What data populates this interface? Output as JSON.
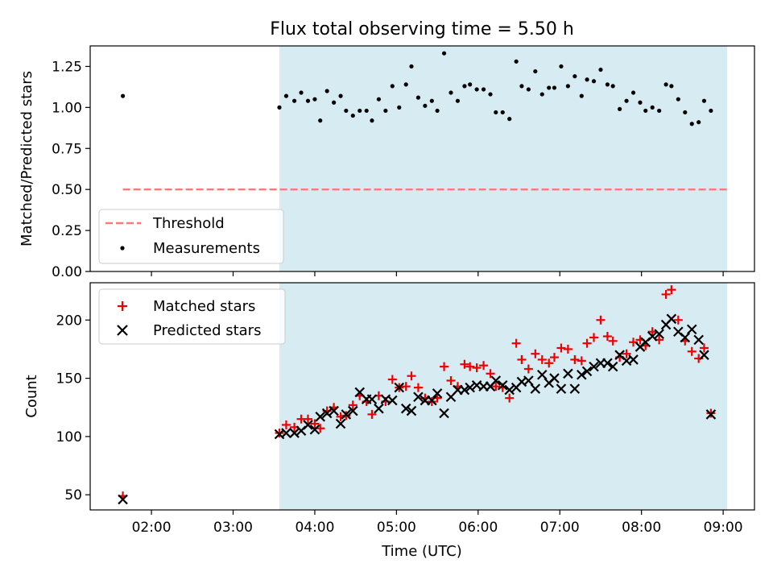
{
  "title": "Flux total observing time = 5.50 h",
  "colors": {
    "shade": "#add8e6",
    "threshold": "#ff7777",
    "measurement": "#000000",
    "matched": "#ee0000",
    "predicted": "#000000"
  },
  "shared_x": {
    "label": "Time (UTC)",
    "unit": "hours UTC",
    "range": [
      "01:15",
      "09:23"
    ],
    "ticks": [
      "02:00",
      "03:00",
      "04:00",
      "05:00",
      "06:00",
      "07:00",
      "08:00",
      "09:00"
    ],
    "shaded_span": [
      "03:34",
      "09:03"
    ]
  },
  "chart_data": [
    {
      "type": "scatter",
      "ylabel": "Matched/Predicted stars",
      "ylim": [
        0,
        1.375
      ],
      "yticks": [
        "0.00",
        "0.25",
        "0.50",
        "0.75",
        "1.00",
        "1.25"
      ],
      "legend": {
        "placement": "lower-left",
        "entries": [
          "Threshold",
          "Measurements"
        ]
      },
      "threshold": {
        "name": "Threshold",
        "value": 0.5,
        "from": "01:39",
        "to": "09:03",
        "style": "dashed"
      },
      "series": [
        {
          "name": "Measurements",
          "points": [
            [
              "01:39",
              1.07
            ],
            [
              "03:34",
              1.0
            ],
            [
              "03:39",
              1.07
            ],
            [
              "03:45",
              1.04
            ],
            [
              "03:50",
              1.09
            ],
            [
              "03:55",
              1.04
            ],
            [
              "04:00",
              1.05
            ],
            [
              "04:04",
              0.92
            ],
            [
              "04:09",
              1.1
            ],
            [
              "04:14",
              1.03
            ],
            [
              "04:19",
              1.07
            ],
            [
              "04:23",
              0.98
            ],
            [
              "04:28",
              0.95
            ],
            [
              "04:33",
              0.98
            ],
            [
              "04:38",
              0.98
            ],
            [
              "04:42",
              0.92
            ],
            [
              "04:47",
              1.05
            ],
            [
              "04:52",
              0.98
            ],
            [
              "04:57",
              1.13
            ],
            [
              "05:02",
              1.0
            ],
            [
              "05:07",
              1.14
            ],
            [
              "05:11",
              1.25
            ],
            [
              "05:16",
              1.06
            ],
            [
              "05:21",
              1.01
            ],
            [
              "05:26",
              1.04
            ],
            [
              "05:30",
              0.98
            ],
            [
              "05:35",
              1.33
            ],
            [
              "05:40",
              1.09
            ],
            [
              "05:45",
              1.04
            ],
            [
              "05:50",
              1.13
            ],
            [
              "05:54",
              1.14
            ],
            [
              "05:59",
              1.11
            ],
            [
              "06:04",
              1.11
            ],
            [
              "06:09",
              1.08
            ],
            [
              "06:13",
              0.97
            ],
            [
              "06:18",
              0.97
            ],
            [
              "06:23",
              0.93
            ],
            [
              "06:28",
              1.28
            ],
            [
              "06:32",
              1.13
            ],
            [
              "06:37",
              1.11
            ],
            [
              "06:42",
              1.22
            ],
            [
              "06:47",
              1.08
            ],
            [
              "06:52",
              1.12
            ],
            [
              "06:56",
              1.12
            ],
            [
              "07:01",
              1.25
            ],
            [
              "07:06",
              1.13
            ],
            [
              "07:11",
              1.19
            ],
            [
              "07:16",
              1.07
            ],
            [
              "07:20",
              1.17
            ],
            [
              "07:25",
              1.16
            ],
            [
              "07:30",
              1.23
            ],
            [
              "07:35",
              1.14
            ],
            [
              "07:39",
              1.13
            ],
            [
              "07:44",
              0.99
            ],
            [
              "07:49",
              1.04
            ],
            [
              "07:54",
              1.09
            ],
            [
              "07:59",
              1.03
            ],
            [
              "08:03",
              0.98
            ],
            [
              "08:08",
              1.0
            ],
            [
              "08:13",
              0.98
            ],
            [
              "08:18",
              1.14
            ],
            [
              "08:22",
              1.13
            ],
            [
              "08:27",
              1.05
            ],
            [
              "08:32",
              0.97
            ],
            [
              "08:37",
              0.9
            ],
            [
              "08:42",
              0.91
            ],
            [
              "08:46",
              1.04
            ],
            [
              "08:51",
              0.98
            ]
          ]
        }
      ]
    },
    {
      "type": "scatter",
      "ylabel": "Count",
      "ylim": [
        37,
        232
      ],
      "yticks": [
        "50",
        "100",
        "150",
        "200"
      ],
      "legend": {
        "placement": "top-left",
        "entries": [
          "Matched stars",
          "Predicted stars"
        ]
      },
      "series": [
        {
          "name": "Matched stars",
          "points": [
            [
              "01:39",
              49
            ],
            [
              "03:34",
              103
            ],
            [
              "03:39",
              110
            ],
            [
              "03:45",
              108
            ],
            [
              "03:50",
              115
            ],
            [
              "03:55",
              115
            ],
            [
              "04:00",
              111
            ],
            [
              "04:04",
              107
            ],
            [
              "04:09",
              122
            ],
            [
              "04:14",
              125
            ],
            [
              "04:19",
              117
            ],
            [
              "04:23",
              118
            ],
            [
              "04:28",
              127
            ],
            [
              "04:33",
              135
            ],
            [
              "04:38",
              130
            ],
            [
              "04:42",
              119
            ],
            [
              "04:47",
              135
            ],
            [
              "04:52",
              130
            ],
            [
              "04:57",
              149
            ],
            [
              "05:02",
              142
            ],
            [
              "05:07",
              143
            ],
            [
              "05:11",
              152
            ],
            [
              "05:16",
              142
            ],
            [
              "05:21",
              133
            ],
            [
              "05:26",
              130
            ],
            [
              "05:30",
              133
            ],
            [
              "05:35",
              160
            ],
            [
              "05:40",
              148
            ],
            [
              "05:45",
              143
            ],
            [
              "05:50",
              162
            ],
            [
              "05:54",
              160
            ],
            [
              "05:59",
              159
            ],
            [
              "06:04",
              161
            ],
            [
              "06:09",
              154
            ],
            [
              "06:13",
              143
            ],
            [
              "06:18",
              142
            ],
            [
              "06:23",
              133
            ],
            [
              "06:28",
              180
            ],
            [
              "06:32",
              166
            ],
            [
              "06:37",
              158
            ],
            [
              "06:42",
              171
            ],
            [
              "06:47",
              166
            ],
            [
              "06:52",
              163
            ],
            [
              "06:56",
              168
            ],
            [
              "07:01",
              176
            ],
            [
              "07:06",
              175
            ],
            [
              "07:11",
              166
            ],
            [
              "07:16",
              165
            ],
            [
              "07:20",
              180
            ],
            [
              "07:25",
              185
            ],
            [
              "07:30",
              200
            ],
            [
              "07:35",
              186
            ],
            [
              "07:39",
              182
            ],
            [
              "07:44",
              168
            ],
            [
              "07:49",
              171
            ],
            [
              "07:54",
              181
            ],
            [
              "07:59",
              183
            ],
            [
              "08:03",
              178
            ],
            [
              "08:08",
              190
            ],
            [
              "08:13",
              183
            ],
            [
              "08:18",
              222
            ],
            [
              "08:22",
              226
            ],
            [
              "08:27",
              200
            ],
            [
              "08:32",
              182
            ],
            [
              "08:37",
              173
            ],
            [
              "08:42",
              167
            ],
            [
              "08:46",
              176
            ],
            [
              "08:51",
              120
            ]
          ]
        },
        {
          "name": "Predicted stars",
          "points": [
            [
              "01:39",
              46
            ],
            [
              "03:34",
              102
            ],
            [
              "03:39",
              103
            ],
            [
              "03:45",
              103
            ],
            [
              "03:50",
              105
            ],
            [
              "03:55",
              110
            ],
            [
              "04:00",
              106
            ],
            [
              "04:04",
              117
            ],
            [
              "04:09",
              120
            ],
            [
              "04:14",
              122
            ],
            [
              "04:19",
              111
            ],
            [
              "04:23",
              119
            ],
            [
              "04:28",
              122
            ],
            [
              "04:33",
              138
            ],
            [
              "04:38",
              132
            ],
            [
              "04:42",
              132
            ],
            [
              "04:47",
              124
            ],
            [
              "04:52",
              132
            ],
            [
              "04:57",
              131
            ],
            [
              "05:02",
              142
            ],
            [
              "05:07",
              124
            ],
            [
              "05:11",
              122
            ],
            [
              "05:16",
              134
            ],
            [
              "05:21",
              131
            ],
            [
              "05:26",
              131
            ],
            [
              "05:30",
              137
            ],
            [
              "05:35",
              120
            ],
            [
              "05:40",
              134
            ],
            [
              "05:45",
              140
            ],
            [
              "05:50",
              140
            ],
            [
              "05:54",
              142
            ],
            [
              "05:59",
              144
            ],
            [
              "06:04",
              143
            ],
            [
              "06:09",
              143
            ],
            [
              "06:13",
              148
            ],
            [
              "06:18",
              144
            ],
            [
              "06:23",
              140
            ],
            [
              "06:28",
              142
            ],
            [
              "06:32",
              147
            ],
            [
              "06:37",
              148
            ],
            [
              "06:42",
              141
            ],
            [
              "06:47",
              153
            ],
            [
              "06:52",
              146
            ],
            [
              "06:56",
              150
            ],
            [
              "07:01",
              141
            ],
            [
              "07:06",
              154
            ],
            [
              "07:11",
              141
            ],
            [
              "07:16",
              153
            ],
            [
              "07:20",
              156
            ],
            [
              "07:25",
              160
            ],
            [
              "07:30",
              163
            ],
            [
              "07:35",
              163
            ],
            [
              "07:39",
              160
            ],
            [
              "07:44",
              170
            ],
            [
              "07:49",
              165
            ],
            [
              "07:54",
              166
            ],
            [
              "07:59",
              177
            ],
            [
              "08:03",
              181
            ],
            [
              "08:08",
              186
            ],
            [
              "08:13",
              188
            ],
            [
              "08:18",
              196
            ],
            [
              "08:22",
              201
            ],
            [
              "08:27",
              190
            ],
            [
              "08:32",
              185
            ],
            [
              "08:37",
              192
            ],
            [
              "08:42",
              183
            ],
            [
              "08:46",
              170
            ],
            [
              "08:51",
              119
            ]
          ]
        }
      ]
    }
  ]
}
